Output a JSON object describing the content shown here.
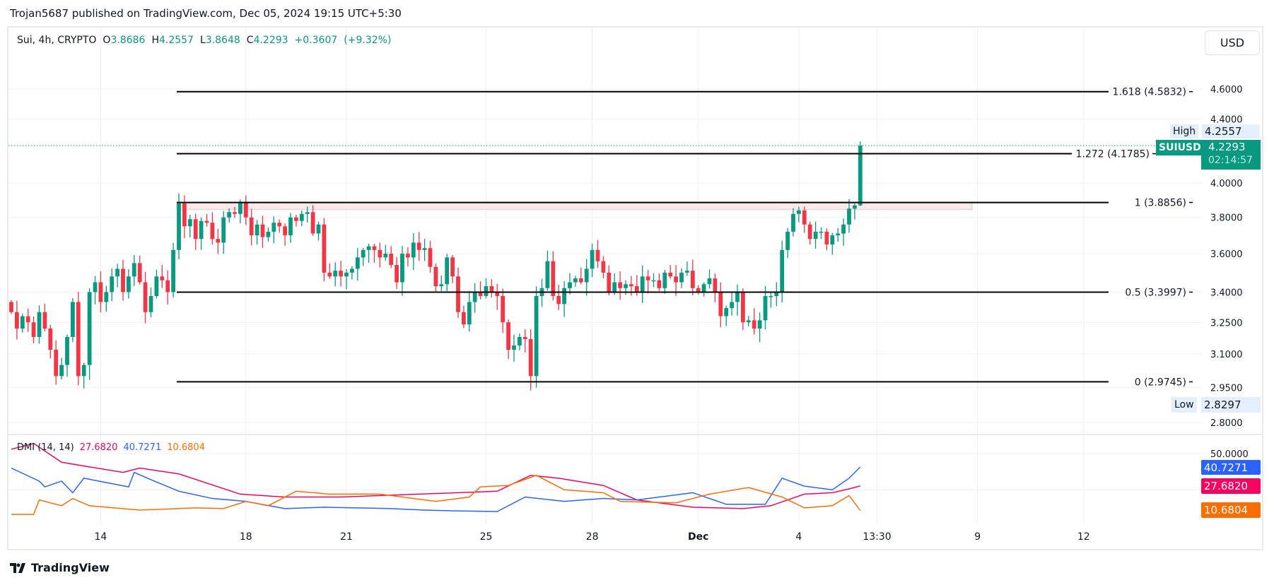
{
  "publish_line": "Trojan5687 published on TradingView.com, Dec 05, 2024 19:15 UTC+5:30",
  "legend": {
    "symbol": "Sui, 4h, CRYPTO",
    "o_label": "O",
    "o": "3.8686",
    "h_label": "H",
    "h": "4.2557",
    "l_label": "L",
    "l": "3.8648",
    "c_label": "C",
    "c": "4.2293",
    "change": "+0.3607",
    "change_pct": "(+9.32%)"
  },
  "currency_button": "USD",
  "brand": "TradingView",
  "colors": {
    "up": "#089981",
    "down": "#F23645",
    "adx": "#F7045E",
    "plus_di": "#2962FF",
    "minus_di": "#FF6D00",
    "grid": "#F0F1F4"
  },
  "tags": {
    "high_label": "High",
    "high_value": "4.2557",
    "symbol_label": "SUIUSD",
    "last_price": "4.2293",
    "countdown": "02:14:57",
    "low_label": "Low",
    "low_value": "2.8297"
  },
  "chart_data": [
    {
      "type": "candlestick",
      "title": "Sui, 4h, CRYPTO",
      "scale": "log",
      "ylim": [
        2.78,
        4.75
      ],
      "y_ticks": [
        "4.6000",
        "4.4000",
        "4.0000",
        "3.8000",
        "3.6000",
        "3.4000",
        "3.2500",
        "3.1000",
        "2.9500",
        "2.8000"
      ],
      "y_tick_values": [
        4.6,
        4.4,
        4.0,
        3.8,
        3.6,
        3.4,
        3.25,
        3.1,
        2.95,
        2.8
      ],
      "x_ticks": [
        {
          "label": "14",
          "bar": 16
        },
        {
          "label": "18",
          "bar": 42
        },
        {
          "label": "21",
          "bar": 60
        },
        {
          "label": "25",
          "bar": 85
        },
        {
          "label": "28",
          "bar": 104
        },
        {
          "label": "Dec",
          "bar": 123
        },
        {
          "label": "4",
          "bar": 141
        },
        {
          "label": "13:30",
          "bar": 155
        },
        {
          "label": "9",
          "bar": 173
        },
        {
          "label": "12",
          "bar": 192
        }
      ],
      "first_open": 3.35,
      "close": [
        3.3,
        3.22,
        3.28,
        3.25,
        3.18,
        3.3,
        3.22,
        3.12,
        3.0,
        3.05,
        3.18,
        3.35,
        3.0,
        3.05,
        3.4,
        3.45,
        3.35,
        3.4,
        3.48,
        3.52,
        3.4,
        3.48,
        3.55,
        3.45,
        3.3,
        3.38,
        3.48,
        3.46,
        3.4,
        3.62,
        3.88,
        3.75,
        3.79,
        3.68,
        3.78,
        3.77,
        3.68,
        3.66,
        3.8,
        3.83,
        3.82,
        3.89,
        3.8,
        3.7,
        3.76,
        3.69,
        3.72,
        3.77,
        3.75,
        3.7,
        3.8,
        3.78,
        3.82,
        3.83,
        3.71,
        3.76,
        3.5,
        3.48,
        3.51,
        3.48,
        3.5,
        3.52,
        3.58,
        3.62,
        3.64,
        3.62,
        3.58,
        3.6,
        3.54,
        3.45,
        3.6,
        3.58,
        3.66,
        3.62,
        3.63,
        3.53,
        3.43,
        3.44,
        3.58,
        3.48,
        3.3,
        3.24,
        3.35,
        3.4,
        3.38,
        3.43,
        3.4,
        3.38,
        3.25,
        3.12,
        3.14,
        3.18,
        3.17,
        3.0,
        3.38,
        3.42,
        3.56,
        3.38,
        3.34,
        3.42,
        3.45,
        3.47,
        3.45,
        3.52,
        3.62,
        3.56,
        3.5,
        3.4,
        3.45,
        3.42,
        3.44,
        3.43,
        3.4,
        3.48,
        3.46,
        3.46,
        3.42,
        3.5,
        3.48,
        3.45,
        3.5,
        3.51,
        3.42,
        3.4,
        3.44,
        3.47,
        3.4,
        3.28,
        3.32,
        3.35,
        3.4,
        3.25,
        3.26,
        3.22,
        3.26,
        3.38,
        3.38,
        3.4,
        3.62,
        3.72,
        3.82,
        3.84,
        3.76,
        3.68,
        3.72,
        3.72,
        3.65,
        3.7,
        3.71,
        3.76,
        3.85,
        3.8686,
        4.2293
      ],
      "last_bar": {
        "open": 3.8686,
        "high": 4.2557,
        "low": 3.8648,
        "close": 4.2293
      },
      "fib_levels": [
        {
          "label": "1.618 (4.5832)",
          "value": 4.5832
        },
        {
          "label": "1.272 (4.1785)",
          "value": 4.1785
        },
        {
          "label": "1 (3.8856)",
          "value": 3.8856
        },
        {
          "label": "0.5 (3.3997)",
          "value": 3.3997
        },
        {
          "label": "0 (2.9745)",
          "value": 2.9745
        }
      ],
      "zone": {
        "top": 3.8856,
        "bottom": 3.845
      }
    },
    {
      "type": "line",
      "title": "DMI (14, 14)",
      "ylim": [
        0,
        55
      ],
      "y_ticks": [
        "50.0000"
      ],
      "series": [
        {
          "name": "ADX",
          "value": "27.6820",
          "color": "#F7045E",
          "points": [
            [
              0,
              53
            ],
            [
              4,
              57
            ],
            [
              9,
              44
            ],
            [
              20,
              37
            ],
            [
              23,
              40
            ],
            [
              30,
              36
            ],
            [
              41,
              22
            ],
            [
              49,
              20
            ],
            [
              59,
              20
            ],
            [
              87,
              24
            ],
            [
              93,
              35
            ],
            [
              98,
              33
            ],
            [
              106,
              28
            ],
            [
              112,
              18
            ],
            [
              122,
              13
            ],
            [
              131,
              12
            ],
            [
              136,
              14
            ],
            [
              142,
              22
            ],
            [
              147,
              23
            ],
            [
              150,
              25.6
            ],
            [
              152,
              27.68
            ]
          ]
        },
        {
          "name": "+DI",
          "value": "40.7271",
          "color": "#2962FF",
          "points": [
            [
              0,
              40
            ],
            [
              5,
              31
            ],
            [
              6,
              27
            ],
            [
              9,
              31
            ],
            [
              11,
              23
            ],
            [
              13,
              33
            ],
            [
              17,
              30
            ],
            [
              21,
              27
            ],
            [
              22,
              37
            ],
            [
              25,
              32
            ],
            [
              30,
              24
            ],
            [
              36,
              19
            ],
            [
              42,
              17
            ],
            [
              49,
              12
            ],
            [
              56,
              13
            ],
            [
              68,
              12
            ],
            [
              74,
              11
            ],
            [
              79,
              10.5
            ],
            [
              87,
              10
            ],
            [
              92,
              20
            ],
            [
              99,
              17
            ],
            [
              106,
              19
            ],
            [
              112,
              18
            ],
            [
              122,
              23
            ],
            [
              128,
              15
            ],
            [
              135,
              15
            ],
            [
              138,
              33
            ],
            [
              142,
              27.5
            ],
            [
              147,
              25
            ],
            [
              150,
              33
            ],
            [
              152,
              40.73
            ]
          ]
        },
        {
          "name": "-DI",
          "value": "10.6804",
          "color": "#FF6D00",
          "points": [
            [
              0,
              8
            ],
            [
              4,
              8
            ],
            [
              5,
              18
            ],
            [
              9,
              14
            ],
            [
              11,
              19
            ],
            [
              14,
              14
            ],
            [
              23,
              11
            ],
            [
              33,
              12.5
            ],
            [
              38,
              12
            ],
            [
              42,
              17
            ],
            [
              46,
              14
            ],
            [
              51,
              24
            ],
            [
              57,
              22
            ],
            [
              66,
              22
            ],
            [
              76,
              17
            ],
            [
              82,
              20
            ],
            [
              84,
              27
            ],
            [
              89,
              28
            ],
            [
              94,
              35
            ],
            [
              99,
              25
            ],
            [
              106,
              23
            ],
            [
              109,
              17
            ],
            [
              119,
              16
            ],
            [
              125,
              22
            ],
            [
              132,
              26.6
            ],
            [
              138,
              20
            ],
            [
              142,
              12.5
            ],
            [
              147,
              14
            ],
            [
              150,
              21
            ],
            [
              152,
              10.68
            ]
          ]
        }
      ]
    }
  ]
}
